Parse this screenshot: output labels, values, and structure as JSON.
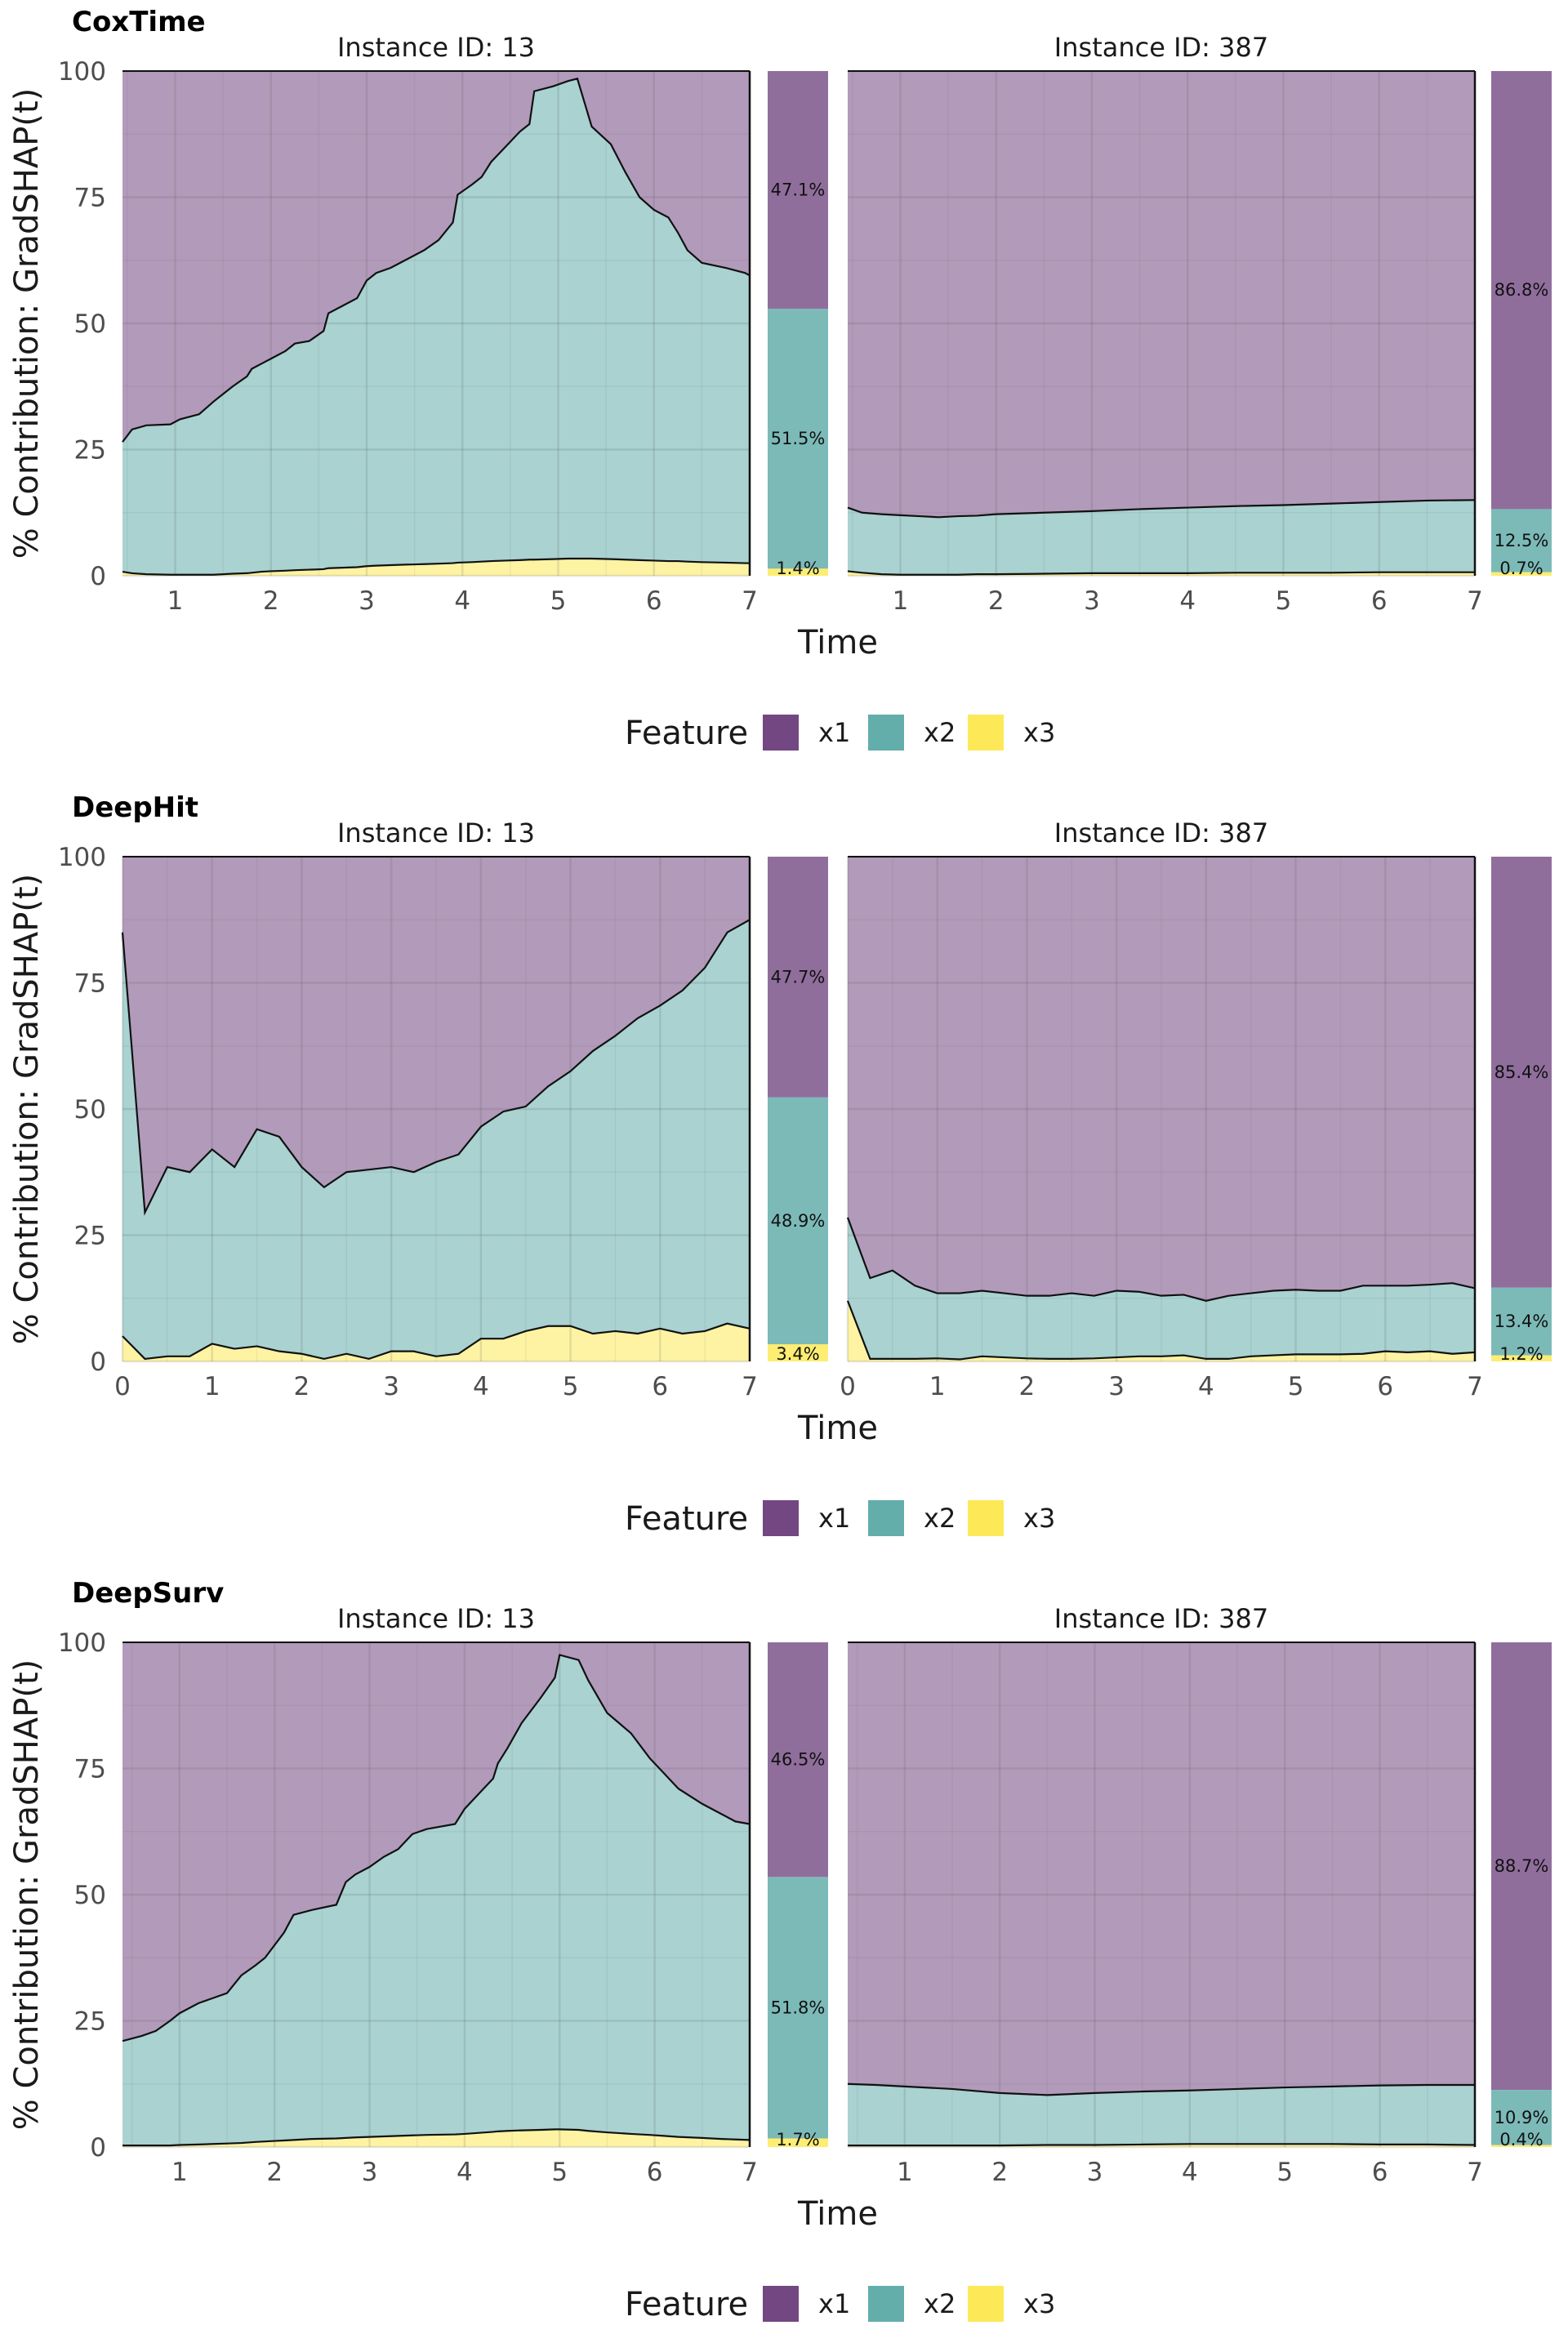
{
  "figure": {
    "y_axis_label": "% Contribution: GradSHAP(t)",
    "x_axis_label": "Time",
    "legend_title": "Feature",
    "legend_items": [
      {
        "label": "x1",
        "color": "#6b3d7b"
      },
      {
        "label": "x2",
        "color": "#5ba9a6"
      },
      {
        "label": "x3",
        "color": "#fde84f"
      }
    ]
  },
  "chart_data": [
    {
      "type": "area",
      "title": "CoxTime",
      "xlabel": "Time",
      "ylabel": "% Contribution: GradSHAP(t)",
      "ylim": [
        0,
        100
      ],
      "yticks": [
        0,
        25,
        50,
        75,
        100
      ],
      "stacking": "percent",
      "series_colors": {
        "x1": "#6b3d7b",
        "x2": "#5ba9a6",
        "x3": "#fde84f"
      },
      "legend_position": "bottom",
      "grid": true,
      "panels": [
        {
          "strip": "Instance ID: 13",
          "xlim": [
            0.45,
            7
          ],
          "xticks": [
            1,
            2,
            3,
            4,
            5,
            6,
            7
          ],
          "x": [
            0.45,
            0.55,
            0.7,
            0.95,
            1.05,
            1.25,
            1.4,
            1.5,
            1.6,
            1.75,
            1.8,
            1.9,
            2.0,
            2.15,
            2.25,
            2.4,
            2.55,
            2.6,
            2.75,
            2.9,
            3.0,
            3.1,
            3.25,
            3.4,
            3.6,
            3.75,
            3.9,
            3.95,
            4.1,
            4.2,
            4.3,
            4.45,
            4.6,
            4.7,
            4.75,
            4.95,
            5.1,
            5.2,
            5.35,
            5.55,
            5.7,
            5.85,
            6.0,
            6.15,
            6.25,
            6.35,
            6.5,
            6.75,
            6.95,
            7.0
          ],
          "cum_x3": [
            0.8,
            0.5,
            0.3,
            0.2,
            0.2,
            0.2,
            0.2,
            0.3,
            0.4,
            0.5,
            0.6,
            0.8,
            0.9,
            1.0,
            1.1,
            1.2,
            1.3,
            1.5,
            1.6,
            1.7,
            1.9,
            2.0,
            2.1,
            2.2,
            2.3,
            2.4,
            2.5,
            2.6,
            2.7,
            2.8,
            2.9,
            3.0,
            3.1,
            3.2,
            3.2,
            3.3,
            3.4,
            3.4,
            3.4,
            3.3,
            3.2,
            3.1,
            3.0,
            2.9,
            2.9,
            2.8,
            2.7,
            2.6,
            2.5,
            2.5
          ],
          "cum_x2": [
            26.5,
            29.0,
            29.8,
            30.0,
            31.0,
            32.0,
            34.5,
            36.0,
            37.5,
            39.5,
            41.0,
            42.0,
            43.0,
            44.5,
            46.0,
            46.5,
            48.5,
            52.0,
            53.5,
            55.0,
            58.5,
            60.0,
            61.0,
            62.5,
            64.5,
            66.5,
            70.0,
            75.5,
            77.5,
            79.0,
            82.0,
            85.0,
            88.0,
            89.5,
            96.0,
            97.0,
            98.0,
            98.5,
            89.0,
            85.5,
            80.0,
            75.0,
            72.5,
            71.0,
            68.0,
            64.5,
            62.0,
            61.0,
            60.0,
            59.5
          ],
          "summary_bar": {
            "x1_pct": 47.1,
            "x2_pct": 51.5,
            "x3_pct": 1.4,
            "labels": {
              "x1": "47.1%",
              "x2": "51.5%",
              "x3": "1.4%"
            }
          }
        },
        {
          "strip": "Instance ID: 387",
          "xlim": [
            0.45,
            7
          ],
          "xticks": [
            1,
            2,
            3,
            4,
            5,
            6,
            7
          ],
          "x": [
            0.45,
            0.6,
            0.8,
            1.0,
            1.2,
            1.4,
            1.6,
            1.8,
            2.0,
            2.5,
            3.0,
            3.5,
            4.0,
            4.5,
            5.0,
            5.5,
            6.0,
            6.5,
            7.0
          ],
          "cum_x3": [
            0.9,
            0.6,
            0.3,
            0.2,
            0.2,
            0.2,
            0.2,
            0.3,
            0.3,
            0.4,
            0.5,
            0.5,
            0.5,
            0.6,
            0.6,
            0.6,
            0.7,
            0.7,
            0.7
          ],
          "cum_x2": [
            13.5,
            12.5,
            12.2,
            12.0,
            11.8,
            11.6,
            11.8,
            11.9,
            12.2,
            12.5,
            12.8,
            13.2,
            13.5,
            13.8,
            14.0,
            14.3,
            14.6,
            14.9,
            15.0
          ],
          "summary_bar": {
            "x1_pct": 86.8,
            "x2_pct": 12.5,
            "x3_pct": 0.7,
            "labels": {
              "x1": "86.8%",
              "x2": "12.5%",
              "x3": "0.7%"
            }
          }
        }
      ]
    },
    {
      "type": "area",
      "title": "DeepHit",
      "xlabel": "Time",
      "ylabel": "% Contribution: GradSHAP(t)",
      "ylim": [
        0,
        100
      ],
      "yticks": [
        0,
        25,
        50,
        75,
        100
      ],
      "stacking": "percent",
      "series_colors": {
        "x1": "#6b3d7b",
        "x2": "#5ba9a6",
        "x3": "#fde84f"
      },
      "legend_position": "bottom",
      "grid": true,
      "panels": [
        {
          "strip": "Instance ID: 13",
          "xlim": [
            0,
            7
          ],
          "xticks": [
            0,
            1,
            2,
            3,
            4,
            5,
            6,
            7
          ],
          "x": [
            0.0,
            0.25,
            0.5,
            0.75,
            1.0,
            1.25,
            1.5,
            1.75,
            2.0,
            2.25,
            2.5,
            2.75,
            3.0,
            3.25,
            3.5,
            3.75,
            4.0,
            4.25,
            4.5,
            4.75,
            5.0,
            5.25,
            5.5,
            5.75,
            6.0,
            6.25,
            6.5,
            6.75,
            7.0
          ],
          "cum_x3": [
            5.0,
            0.5,
            1.0,
            1.0,
            3.5,
            2.5,
            3.0,
            2.0,
            1.5,
            0.5,
            1.5,
            0.5,
            2.0,
            2.0,
            1.0,
            1.5,
            4.5,
            4.5,
            6.0,
            7.0,
            7.0,
            5.5,
            6.0,
            5.5,
            6.5,
            5.5,
            6.0,
            7.5,
            6.5
          ],
          "cum_x2": [
            85.0,
            29.5,
            38.5,
            37.5,
            42.0,
            38.5,
            46.0,
            44.5,
            38.5,
            34.5,
            37.5,
            38.0,
            38.5,
            37.5,
            39.5,
            41.0,
            46.5,
            49.5,
            50.5,
            54.5,
            57.5,
            61.5,
            64.5,
            68.0,
            70.5,
            73.5,
            78.0,
            85.0,
            87.5
          ],
          "summary_bar": {
            "x1_pct": 47.7,
            "x2_pct": 48.9,
            "x3_pct": 3.4,
            "labels": {
              "x1": "47.7%",
              "x2": "48.9%",
              "x3": "3.4%"
            }
          }
        },
        {
          "strip": "Instance ID: 387",
          "xlim": [
            0,
            7
          ],
          "xticks": [
            0,
            1,
            2,
            3,
            4,
            5,
            6,
            7
          ],
          "x": [
            0.0,
            0.25,
            0.5,
            0.75,
            1.0,
            1.25,
            1.5,
            1.75,
            2.0,
            2.25,
            2.5,
            2.75,
            3.0,
            3.25,
            3.5,
            3.75,
            4.0,
            4.25,
            4.5,
            4.75,
            5.0,
            5.25,
            5.5,
            5.75,
            6.0,
            6.25,
            6.5,
            6.75,
            7.0
          ],
          "cum_x3": [
            12.0,
            0.5,
            0.5,
            0.5,
            0.6,
            0.4,
            1.0,
            0.8,
            0.6,
            0.5,
            0.5,
            0.6,
            0.8,
            1.0,
            1.0,
            1.2,
            0.5,
            0.5,
            1.0,
            1.2,
            1.4,
            1.4,
            1.4,
            1.5,
            2.0,
            1.8,
            2.0,
            1.5,
            1.8
          ],
          "cum_x2": [
            28.5,
            16.5,
            18.0,
            15.0,
            13.5,
            13.5,
            14.0,
            13.5,
            13.0,
            13.0,
            13.5,
            13.0,
            14.0,
            13.8,
            13.0,
            13.2,
            12.0,
            13.0,
            13.5,
            14.0,
            14.2,
            14.0,
            14.0,
            15.0,
            15.0,
            15.0,
            15.2,
            15.5,
            14.5
          ],
          "summary_bar": {
            "x1_pct": 85.4,
            "x2_pct": 13.4,
            "x3_pct": 1.2,
            "labels": {
              "x1": "85.4%",
              "x2": "13.4%",
              "x3": "1.2%"
            }
          }
        }
      ]
    },
    {
      "type": "area",
      "title": "DeepSurv",
      "xlabel": "Time",
      "ylabel": "% Contribution: GradSHAP(t)",
      "ylim": [
        0,
        100
      ],
      "yticks": [
        0,
        25,
        50,
        75,
        100
      ],
      "stacking": "percent",
      "series_colors": {
        "x1": "#6b3d7b",
        "x2": "#5ba9a6",
        "x3": "#fde84f"
      },
      "legend_position": "bottom",
      "grid": true,
      "panels": [
        {
          "strip": "Instance ID: 13",
          "xlim": [
            0.4,
            7
          ],
          "xticks": [
            1,
            2,
            3,
            4,
            5,
            6,
            7
          ],
          "x": [
            0.4,
            0.6,
            0.75,
            0.9,
            1.0,
            1.2,
            1.5,
            1.65,
            1.8,
            1.9,
            2.0,
            2.1,
            2.2,
            2.4,
            2.65,
            2.75,
            2.85,
            3.0,
            3.15,
            3.3,
            3.45,
            3.6,
            3.9,
            4.0,
            4.15,
            4.3,
            4.35,
            4.45,
            4.6,
            4.8,
            4.95,
            5.0,
            5.2,
            5.3,
            5.5,
            5.75,
            5.95,
            6.1,
            6.25,
            6.5,
            6.7,
            6.85,
            7.0
          ],
          "cum_x3": [
            0.3,
            0.3,
            0.3,
            0.3,
            0.4,
            0.5,
            0.7,
            0.8,
            1.0,
            1.1,
            1.2,
            1.3,
            1.4,
            1.6,
            1.7,
            1.8,
            1.9,
            2.0,
            2.1,
            2.2,
            2.3,
            2.4,
            2.5,
            2.6,
            2.8,
            3.0,
            3.1,
            3.2,
            3.3,
            3.4,
            3.5,
            3.5,
            3.4,
            3.2,
            2.9,
            2.6,
            2.4,
            2.2,
            2.0,
            1.8,
            1.6,
            1.5,
            1.4
          ],
          "cum_x2": [
            21.0,
            22.0,
            23.0,
            25.0,
            26.5,
            28.5,
            30.5,
            34.0,
            36.0,
            37.5,
            40.0,
            42.5,
            46.0,
            47.0,
            48.0,
            52.5,
            54.0,
            55.5,
            57.5,
            59.0,
            62.0,
            63.0,
            64.0,
            67.0,
            70.0,
            73.0,
            76.0,
            79.0,
            84.0,
            89.0,
            93.0,
            97.5,
            96.5,
            92.5,
            86.0,
            82.0,
            77.0,
            74.0,
            71.0,
            68.0,
            66.0,
            64.5,
            64.0
          ],
          "summary_bar": {
            "x1_pct": 46.5,
            "x2_pct": 51.8,
            "x3_pct": 1.7,
            "labels": {
              "x1": "46.5%",
              "x2": "51.8%",
              "x3": "1.7%"
            }
          }
        },
        {
          "strip": "Instance ID: 387",
          "xlim": [
            0.4,
            7
          ],
          "xticks": [
            1,
            2,
            3,
            4,
            5,
            6,
            7
          ],
          "x": [
            0.4,
            0.7,
            1.0,
            1.5,
            2.0,
            2.5,
            3.0,
            3.5,
            4.0,
            4.5,
            5.0,
            5.5,
            6.0,
            6.5,
            7.0
          ],
          "cum_x3": [
            0.3,
            0.3,
            0.3,
            0.3,
            0.3,
            0.4,
            0.4,
            0.5,
            0.6,
            0.6,
            0.6,
            0.6,
            0.5,
            0.5,
            0.4
          ],
          "cum_x2": [
            12.5,
            12.3,
            12.0,
            11.5,
            10.7,
            10.3,
            10.7,
            11.0,
            11.2,
            11.5,
            11.8,
            12.0,
            12.2,
            12.3,
            12.3
          ],
          "summary_bar": {
            "x1_pct": 88.7,
            "x2_pct": 10.9,
            "x3_pct": 0.4,
            "labels": {
              "x1": "88.7%",
              "x2": "10.9%",
              "x3": "0.4%"
            }
          }
        }
      ]
    }
  ]
}
